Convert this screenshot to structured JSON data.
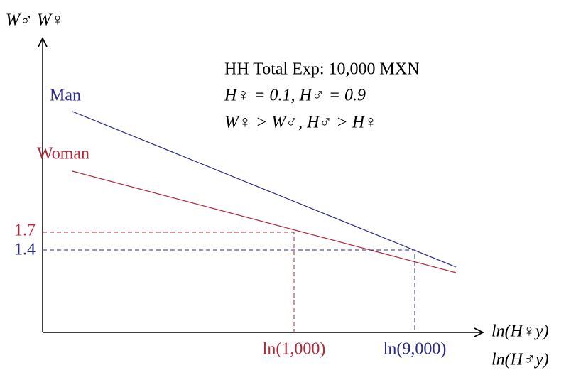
{
  "axes": {
    "y_label": "W♂ W♀",
    "x_label_1": "ln(H♀y)",
    "x_label_2": "ln(H♂y)"
  },
  "annotation": [
    "HH Total Exp: 10,000 MXN",
    "H♀ = 0.1, H♂ = 0.9",
    "W♀ > W♂, H♂ > H♀"
  ],
  "lines": [
    {
      "label": "Man"
    },
    {
      "label": "Woman"
    }
  ],
  "y_marks": [
    "1.7",
    "1.4"
  ],
  "x_marks": [
    "ln(1,000)",
    "ln(9,000)"
  ]
}
